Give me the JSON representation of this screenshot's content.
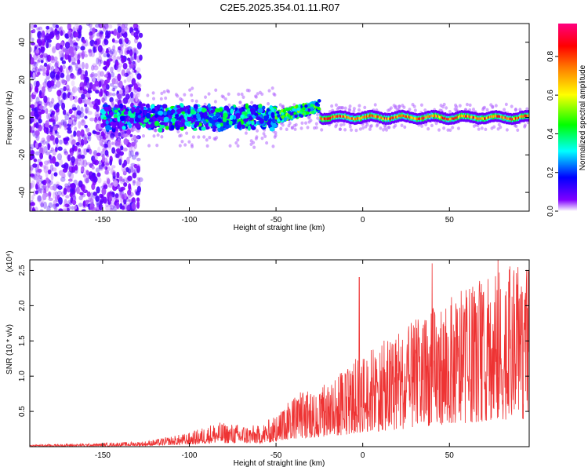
{
  "title": "C2E5.2025.354.01.11.R07",
  "chart_data": [
    {
      "type": "heatmap",
      "title": "C2E5.2025.354.01.11.R07",
      "xlabel": "Height of straight line (km)",
      "ylabel": "Frequency (Hz)",
      "xlim": [
        -192,
        96
      ],
      "ylim": [
        -50,
        50
      ],
      "xticks": [
        -150,
        -100,
        -50,
        0,
        50
      ],
      "yticks": [
        -40,
        -20,
        0,
        20,
        40
      ],
      "colorbar": {
        "label": "Normalized spectral amplitude",
        "range": [
          0.0,
          0.97
        ],
        "ticks": [
          0.0,
          0.2,
          0.4,
          0.6,
          0.8
        ],
        "colors": [
          "#ffffff",
          "#8000ff",
          "#0000ff",
          "#00ffff",
          "#00ff00",
          "#ffff00",
          "#ff8000",
          "#ff0000",
          "#ff0080"
        ]
      },
      "features": [
        {
          "description": "broadband noise",
          "x_range": [
            -192,
            -128
          ],
          "y_range": [
            -50,
            50
          ],
          "amplitude": 0.05
        },
        {
          "description": "signal band",
          "x_range": [
            -150,
            -50
          ],
          "center_hz": 0,
          "width_hz": 10,
          "amplitude": 0.25
        },
        {
          "description": "upturn",
          "x_range": [
            -50,
            -25
          ],
          "center_hz": 6,
          "amplitude": 0.45
        },
        {
          "description": "stable tone",
          "x_range": [
            -25,
            96
          ],
          "center_hz": 0,
          "width_hz": 3,
          "amplitude": 0.8
        }
      ]
    },
    {
      "type": "line",
      "xlabel": "Height of straight line (km)",
      "ylabel": "SNR (10 * v/v)",
      "y_multiplier": "(x10⁴)",
      "xlim": [
        -192,
        96
      ],
      "ylim": [
        0,
        2.65
      ],
      "xticks": [
        -150,
        -100,
        -50,
        0,
        50
      ],
      "yticks": [
        0.5,
        1.0,
        1.5,
        2.0,
        2.5
      ],
      "color": "#ee3333",
      "envelope": {
        "x": [
          -192,
          -150,
          -125,
          -100,
          -85,
          -60,
          -50,
          -40,
          -20,
          0,
          20,
          40,
          60,
          80,
          96
        ],
        "max": [
          0.03,
          0.05,
          0.08,
          0.2,
          0.35,
          0.3,
          0.45,
          0.75,
          0.9,
          1.35,
          1.6,
          2.0,
          2.25,
          2.55,
          2.6
        ]
      },
      "peaks": [
        {
          "x": -2,
          "y": 2.4
        },
        {
          "x": 40,
          "y": 2.6
        },
        {
          "x": 78,
          "y": 2.65
        },
        {
          "x": 96,
          "y": 2.6
        }
      ]
    }
  ]
}
